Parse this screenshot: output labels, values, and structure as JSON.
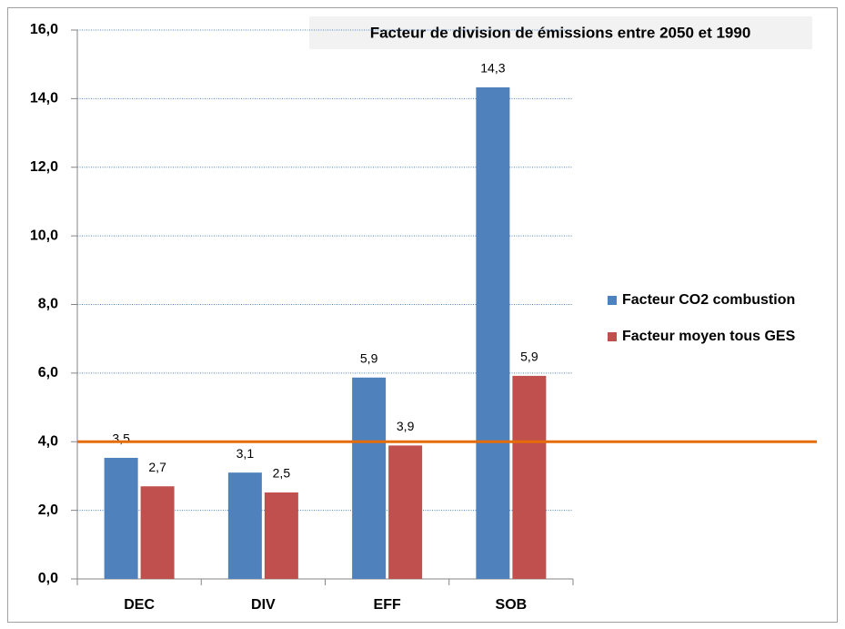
{
  "chart_data": {
    "type": "bar",
    "title": "Facteur de division de émissions entre 2050 et 1990",
    "categories": [
      "DEC",
      "DIV",
      "EFF",
      "SOB"
    ],
    "series": [
      {
        "name": "Facteur CO2 combustion",
        "color": "#4f81bd",
        "values": [
          3.53,
          3.1,
          5.87,
          14.33
        ],
        "value_labels": [
          "3,5",
          "3,1",
          "5,9",
          "14,3"
        ]
      },
      {
        "name": "Facteur moyen tous GES",
        "color": "#c0504d",
        "values": [
          2.7,
          2.52,
          3.89,
          5.92
        ],
        "value_labels": [
          "2,7",
          "2,5",
          "3,9",
          "5,9"
        ]
      }
    ],
    "ylim": [
      0,
      16
    ],
    "yticks": [
      {
        "value": 0,
        "label": "0,0"
      },
      {
        "value": 2,
        "label": "2,0"
      },
      {
        "value": 4,
        "label": "4,0"
      },
      {
        "value": 6,
        "label": "6,0"
      },
      {
        "value": 8,
        "label": "8,0"
      },
      {
        "value": 10,
        "label": "10,0"
      },
      {
        "value": 12,
        "label": "12,0"
      },
      {
        "value": 14,
        "label": "14,0"
      },
      {
        "value": 16,
        "label": "16,0"
      }
    ],
    "grid": true,
    "legend": "right",
    "reference_line": {
      "value": 4,
      "color": "#e46c0a"
    }
  }
}
